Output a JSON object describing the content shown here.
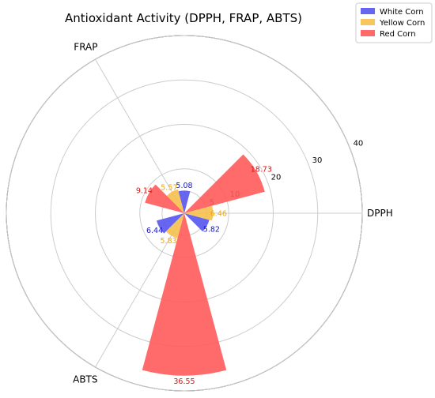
{
  "chart_data": {
    "type": "polar-bar",
    "title": "Antioxidant Activity (DPPH, FRAP, ABTS)",
    "categories": [
      "DPPH",
      "FRAP",
      "ABTS"
    ],
    "radial_ticks": [
      "5",
      "10",
      "20",
      "30",
      "40"
    ],
    "rlim": [
      0,
      40
    ],
    "grid": true,
    "legend_position": "top-right",
    "series": [
      {
        "name": "White Corn",
        "color": "#5555ee",
        "label_color": "#1515cc",
        "values": [
          5.82,
          5.08,
          6.44
        ],
        "labels": [
          "5.82",
          "5.08",
          "6.44"
        ]
      },
      {
        "name": "Yellow Corn",
        "color": "#f7c04d",
        "label_color": "#f0a800",
        "values": [
          6.46,
          5.57,
          5.83
        ],
        "labels": [
          "6.46",
          "5.57",
          "5.83"
        ]
      },
      {
        "name": "Red Corn",
        "color": "#ff5b5b",
        "label_color": "#e01010",
        "values": [
          18.73,
          9.14,
          36.55
        ],
        "labels": [
          "18.73",
          "9.14",
          "36.55"
        ]
      }
    ]
  }
}
